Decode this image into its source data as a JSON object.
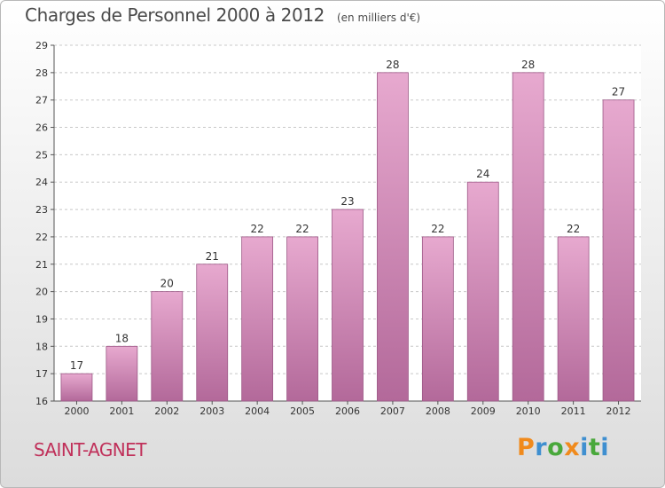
{
  "header": {
    "title": "Charges de Personnel 2000 à 2012",
    "subtitle": "(en milliers d'€)"
  },
  "footer": {
    "town": "SAINT-AGNET",
    "logo_letters": [
      "P",
      "r",
      "o",
      "x",
      "i",
      "t",
      "i"
    ]
  },
  "colors": {
    "bar_top": "#e7a9cf",
    "bar_bottom": "#b3699a",
    "bar_stroke": "#9c5886",
    "town": "#c0305a",
    "logo": [
      "#f08a1c",
      "#3f8fd0",
      "#49a83b",
      "#f08a1c",
      "#3f8fd0",
      "#49a83b",
      "#3f8fd0"
    ]
  },
  "chart_data": {
    "type": "bar",
    "categories": [
      "2000",
      "2001",
      "2002",
      "2003",
      "2004",
      "2005",
      "2006",
      "2007",
      "2008",
      "2009",
      "2010",
      "2011",
      "2012"
    ],
    "values": [
      17,
      18,
      20,
      21,
      22,
      22,
      23,
      28,
      22,
      24,
      28,
      22,
      27
    ],
    "data_labels": [
      "17",
      "18",
      "20",
      "21",
      "22",
      "22",
      "23",
      "28",
      "22",
      "24",
      "28",
      "22",
      "27"
    ],
    "ylim": [
      16,
      29
    ],
    "yticks": [
      "16",
      "17",
      "18",
      "19",
      "20",
      "21",
      "22",
      "23",
      "24",
      "25",
      "26",
      "27",
      "28",
      "29"
    ],
    "grid": "horizontal dashed",
    "legend": "none"
  }
}
